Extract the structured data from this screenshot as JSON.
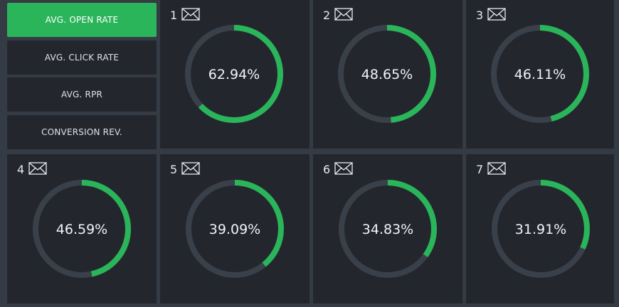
{
  "sidebar": {
    "items": [
      {
        "label": "AVG. OPEN RATE",
        "active": true
      },
      {
        "label": "AVG. CLICK RATE",
        "active": false
      },
      {
        "label": "AVG. RPR",
        "active": false
      },
      {
        "label": "CONVERSION REV.",
        "active": false
      }
    ]
  },
  "colors": {
    "accent": "#2ab55a",
    "track": "#3a404a",
    "tile_bg": "#23272d",
    "page_bg": "#353b44"
  },
  "icon": "envelope-icon",
  "campaigns": [
    {
      "number": "1",
      "value": 62.94,
      "label": "62.94%"
    },
    {
      "number": "2",
      "value": 48.65,
      "label": "48.65%"
    },
    {
      "number": "3",
      "value": 46.11,
      "label": "46.11%"
    },
    {
      "number": "4",
      "value": 46.59,
      "label": "46.59%"
    },
    {
      "number": "5",
      "value": 39.09,
      "label": "39.09%"
    },
    {
      "number": "6",
      "value": 34.83,
      "label": "34.83%"
    },
    {
      "number": "7",
      "value": 31.91,
      "label": "31.91%"
    }
  ]
}
